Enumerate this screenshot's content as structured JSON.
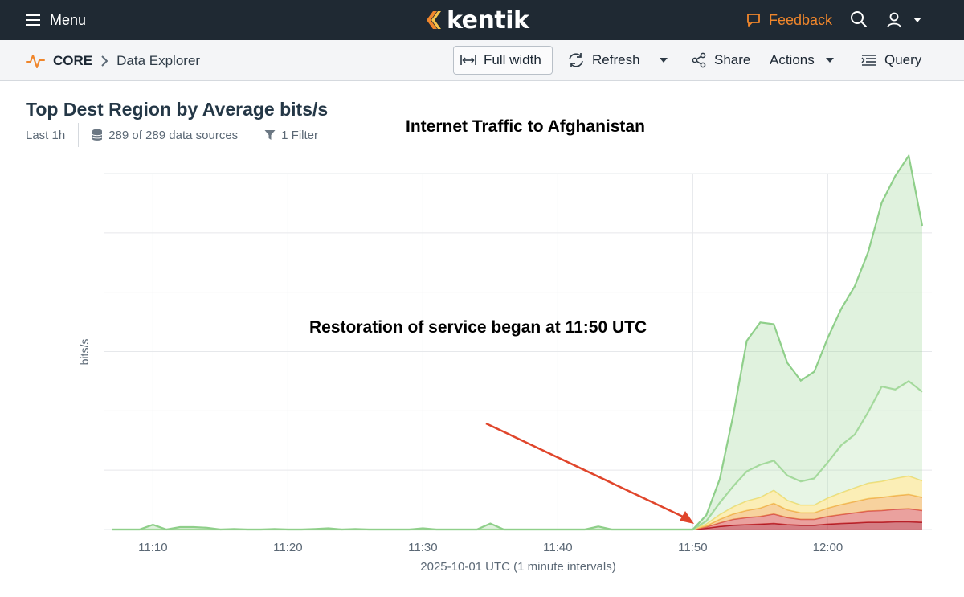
{
  "topbar": {
    "menu_label": "Menu",
    "logo_text": "kentik",
    "feedback_label": "Feedback",
    "accent_color": "#f0862b"
  },
  "subbar": {
    "breadcrumb_root": "CORE",
    "breadcrumb_page": "Data Explorer",
    "fullwidth_label": "Full width",
    "refresh_label": "Refresh",
    "share_label": "Share",
    "actions_label": "Actions",
    "query_label": "Query"
  },
  "panel": {
    "title": "Top Dest Region by Average bits/s",
    "time_range": "Last 1h",
    "data_sources": "289 of 289 data sources",
    "filters": "1 Filter",
    "annotation_title": "Internet Traffic to Afghanistan",
    "annotation_note": "Restoration of service began at 11:50 UTC"
  },
  "chart_data": {
    "type": "area",
    "stacked": true,
    "x_unit": "minute",
    "x": [
      "11:07",
      "11:08",
      "11:09",
      "11:10",
      "11:11",
      "11:12",
      "11:13",
      "11:14",
      "11:15",
      "11:16",
      "11:17",
      "11:18",
      "11:19",
      "11:20",
      "11:21",
      "11:22",
      "11:23",
      "11:24",
      "11:25",
      "11:26",
      "11:27",
      "11:28",
      "11:29",
      "11:30",
      "11:31",
      "11:32",
      "11:33",
      "11:34",
      "11:35",
      "11:36",
      "11:37",
      "11:38",
      "11:39",
      "11:40",
      "11:41",
      "11:42",
      "11:43",
      "11:44",
      "11:45",
      "11:46",
      "11:47",
      "11:48",
      "11:49",
      "11:50",
      "11:51",
      "11:52",
      "11:53",
      "11:54",
      "11:55",
      "11:56",
      "11:57",
      "11:58",
      "11:59",
      "12:00",
      "12:01",
      "12:02",
      "12:03",
      "12:04",
      "12:05",
      "12:06",
      "12:07"
    ],
    "xticks": [
      "11:10",
      "11:20",
      "11:30",
      "11:40",
      "11:50",
      "12:00"
    ],
    "xlabel": "2025-10-01 UTC (1 minute intervals)",
    "ylabel": "bits/s",
    "yticks_shown": false,
    "ylim": [
      0,
      6
    ],
    "grid": true,
    "series": [
      {
        "color": "#b0141f",
        "values": [
          0,
          0,
          0,
          0,
          0,
          0,
          0,
          0,
          0,
          0,
          0,
          0,
          0,
          0,
          0,
          0,
          0,
          0,
          0,
          0,
          0,
          0,
          0,
          0,
          0,
          0,
          0,
          0,
          0,
          0,
          0,
          0,
          0,
          0,
          0,
          0,
          0,
          0,
          0,
          0,
          0,
          0,
          0,
          0,
          0.02,
          0.05,
          0.07,
          0.08,
          0.09,
          0.1,
          0.08,
          0.07,
          0.07,
          0.09,
          0.1,
          0.11,
          0.12,
          0.12,
          0.13,
          0.13,
          0.12
        ]
      },
      {
        "color": "#d9534f",
        "values": [
          0,
          0,
          0,
          0,
          0,
          0,
          0,
          0,
          0,
          0,
          0,
          0,
          0,
          0,
          0,
          0,
          0,
          0,
          0,
          0,
          0,
          0,
          0,
          0,
          0,
          0,
          0,
          0,
          0,
          0,
          0,
          0,
          0,
          0,
          0,
          0,
          0,
          0,
          0,
          0,
          0,
          0,
          0,
          0,
          0.02,
          0.06,
          0.1,
          0.12,
          0.13,
          0.16,
          0.12,
          0.1,
          0.1,
          0.13,
          0.15,
          0.17,
          0.19,
          0.2,
          0.21,
          0.22,
          0.2
        ]
      },
      {
        "color": "#f0ad4e",
        "values": [
          0,
          0,
          0,
          0,
          0,
          0,
          0,
          0,
          0,
          0,
          0,
          0,
          0,
          0,
          0,
          0,
          0,
          0,
          0,
          0,
          0,
          0,
          0,
          0,
          0,
          0,
          0,
          0,
          0,
          0,
          0,
          0,
          0,
          0,
          0,
          0,
          0,
          0,
          0,
          0,
          0,
          0,
          0,
          0,
          0.02,
          0.06,
          0.09,
          0.12,
          0.14,
          0.18,
          0.13,
          0.11,
          0.11,
          0.14,
          0.17,
          0.19,
          0.21,
          0.22,
          0.23,
          0.24,
          0.22
        ]
      },
      {
        "color": "#f7e07a",
        "values": [
          0,
          0,
          0,
          0,
          0,
          0,
          0,
          0,
          0,
          0,
          0,
          0,
          0,
          0,
          0,
          0,
          0,
          0,
          0,
          0,
          0,
          0,
          0,
          0,
          0,
          0,
          0,
          0,
          0,
          0,
          0,
          0,
          0,
          0,
          0,
          0,
          0,
          0,
          0,
          0,
          0,
          0,
          0,
          0,
          0.03,
          0.08,
          0.12,
          0.16,
          0.18,
          0.22,
          0.16,
          0.13,
          0.13,
          0.17,
          0.2,
          0.23,
          0.26,
          0.27,
          0.29,
          0.31,
          0.28
        ]
      },
      {
        "color": "#a8dba0",
        "values": [
          0,
          0,
          0,
          0,
          0,
          0,
          0,
          0,
          0,
          0,
          0,
          0,
          0,
          0,
          0,
          0,
          0,
          0,
          0,
          0,
          0,
          0,
          0,
          0,
          0,
          0,
          0,
          0,
          0,
          0,
          0,
          0,
          0,
          0,
          0,
          0,
          0,
          0,
          0,
          0,
          0,
          0,
          0,
          0,
          0.05,
          0.2,
          0.35,
          0.5,
          0.55,
          0.5,
          0.42,
          0.4,
          0.45,
          0.6,
          0.8,
          0.9,
          1.2,
          1.6,
          1.5,
          1.6,
          1.5
        ]
      },
      {
        "color": "#8fcf8a",
        "values": [
          0,
          0,
          0,
          0.08,
          0,
          0.04,
          0.04,
          0.03,
          0,
          0.01,
          0,
          0,
          0.01,
          0,
          0,
          0.01,
          0.02,
          0,
          0.01,
          0,
          0,
          0,
          0,
          0.02,
          0,
          0,
          0,
          0,
          0.1,
          0,
          0,
          0,
          0,
          0,
          0,
          0,
          0.05,
          0,
          0,
          0,
          0,
          0,
          0,
          0,
          0.1,
          0.4,
          1.2,
          2.2,
          2.4,
          2.3,
          1.9,
          1.7,
          1.8,
          2.1,
          2.3,
          2.5,
          2.7,
          3.1,
          3.6,
          3.8,
          2.8
        ]
      }
    ]
  }
}
